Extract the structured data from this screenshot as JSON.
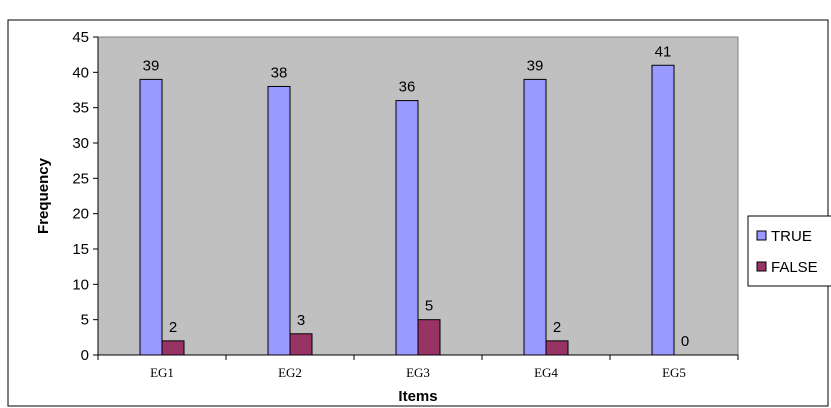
{
  "chart_data": {
    "type": "bar",
    "categories": [
      "EG1",
      "EG2",
      "EG3",
      "EG4",
      "EG5"
    ],
    "series": [
      {
        "name": "TRUE",
        "values": [
          39,
          38,
          36,
          39,
          41
        ],
        "color": "#9999ff"
      },
      {
        "name": "FALSE",
        "values": [
          2,
          3,
          5,
          2,
          0
        ],
        "color": "#993366"
      }
    ],
    "xlabel": "Items",
    "ylabel": "Frequency",
    "ylim": [
      0,
      45
    ],
    "yticks": [
      0,
      5,
      10,
      15,
      20,
      25,
      30,
      35,
      40,
      45
    ],
    "data_labels": true,
    "legend_position": "right",
    "plot_background": "#c0c0c0",
    "grid": false
  }
}
